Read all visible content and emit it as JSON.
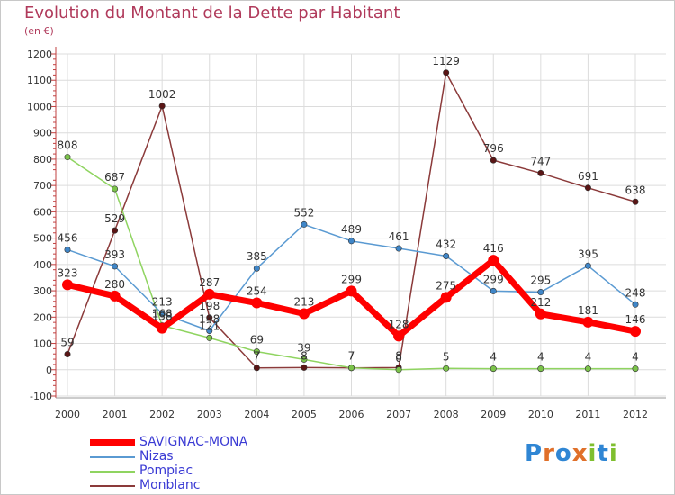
{
  "header": {
    "title": "Evolution du Montant de la Dette par Habitant",
    "subtitle": "(en €)"
  },
  "logo": {
    "text": "Proxiti",
    "letters": [
      "P",
      "r",
      "o",
      "x",
      "i",
      "t",
      "i"
    ],
    "colors": [
      "#2f86d4",
      "#e0702a",
      "#2f86d4",
      "#e0702a",
      "#7fbf2f",
      "#2f86d4",
      "#7fbf2f"
    ]
  },
  "chart_data": {
    "type": "line",
    "title": "Evolution du Montant de la Dette par Habitant",
    "subtitle": "(en €)",
    "xlabel": "",
    "ylabel": "",
    "x": [
      "2000",
      "2001",
      "2002",
      "2003",
      "2004",
      "2005",
      "2006",
      "2007",
      "2008",
      "2009",
      "2010",
      "2011",
      "2012"
    ],
    "yticks": [
      -100,
      0,
      100,
      200,
      300,
      400,
      500,
      600,
      700,
      800,
      900,
      1000,
      1100,
      1200
    ],
    "ylim": [
      -100,
      1200
    ],
    "grid": true,
    "legend_position": "bottom-left",
    "series": [
      {
        "name": "SAVIGNAC-MONA",
        "color": "#ff0000",
        "width": 7,
        "marker": "#ff0000",
        "values": [
          323,
          280,
          158,
          287,
          254,
          213,
          299,
          128,
          275,
          416,
          212,
          181,
          146
        ],
        "labels": [
          "323",
          "280",
          "158",
          "287",
          "254",
          "213",
          "299",
          "128",
          "275",
          "416",
          "212",
          "181",
          "146"
        ]
      },
      {
        "name": "Nizas",
        "color": "#5a9ad2",
        "width": 1.5,
        "marker": "#3f86c8",
        "values": [
          456,
          393,
          213,
          148,
          385,
          552,
          489,
          461,
          432,
          299,
          295,
          395,
          248
        ],
        "labels": [
          "456",
          "393",
          "213",
          "148",
          "385",
          "552",
          "489",
          "461",
          "432",
          "299",
          "295",
          "395",
          "248"
        ]
      },
      {
        "name": "Pompiac",
        "color": "#8fd460",
        "width": 1.5,
        "marker": "#7bc34a",
        "values": [
          808,
          687,
          168,
          121,
          69,
          39,
          7,
          0,
          5,
          4,
          4,
          4,
          4
        ],
        "labels": [
          "808",
          "687",
          "168",
          "121",
          "69",
          "39",
          "7",
          "0",
          "5",
          "4",
          "4",
          "4",
          "4"
        ]
      },
      {
        "name": "Monblanc",
        "color": "#8b3a3a",
        "width": 1.5,
        "marker": "#5a1515",
        "values": [
          59,
          529,
          1002,
          198,
          7,
          8,
          7,
          8,
          1129,
          796,
          747,
          691,
          638
        ],
        "labels": [
          "59",
          "529",
          "1002",
          "198",
          "7",
          "8",
          "7",
          "8",
          "1129",
          "796",
          "747",
          "691",
          "638"
        ]
      }
    ]
  }
}
